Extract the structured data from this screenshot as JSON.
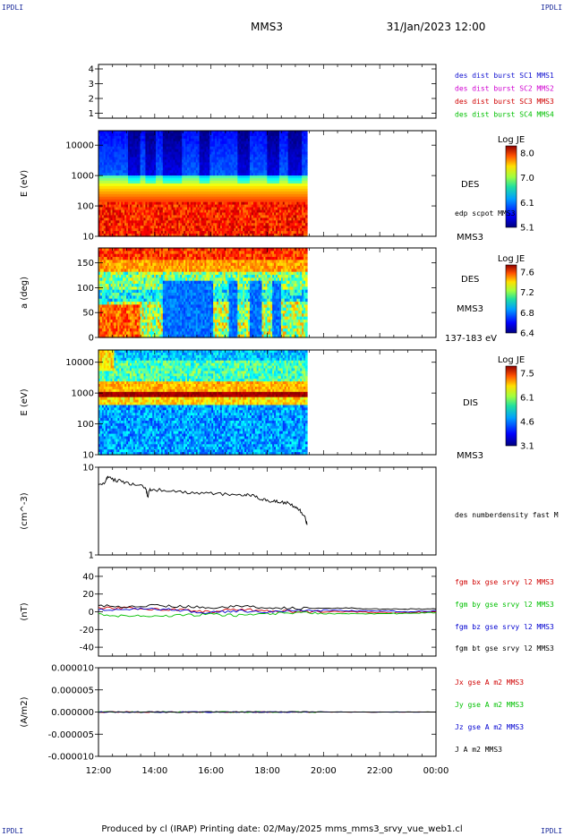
{
  "corner_label": "IPDLI",
  "header": {
    "title": "MMS3",
    "date": "31/Jan/2023 12:00"
  },
  "footer": "Produced by cl (IRAP)   Printing date: 02/May/2025   mms_mms3_srvy_vue_web1.cl",
  "colors": {
    "red": "#d00000",
    "magenta": "#d000d0",
    "green": "#00c000",
    "blue": "#0000d0",
    "black": "#000000"
  },
  "chart_data": [
    {
      "type": "line",
      "panel": "spacecraft-availability",
      "yticks": [
        "4",
        "3",
        "2",
        "1"
      ],
      "legend": [
        {
          "text": "des dist burst SC1 MMS1",
          "color": "#1010d0"
        },
        {
          "text": "des dist burst SC2 MMS2",
          "color": "#d000d0"
        },
        {
          "text": "des dist burst SC3 MMS3",
          "color": "#d00000"
        },
        {
          "text": "des dist burst SC4 MMS4",
          "color": "#00c000"
        }
      ]
    },
    {
      "type": "heatmap",
      "panel": "des-energy-spectrogram",
      "ylabel": "E (eV)",
      "yscale": "log",
      "ylim": [
        10,
        30000
      ],
      "yticks": [
        "10000",
        "1000",
        "100",
        "10"
      ],
      "data_end": "19:25",
      "instrument": "DES",
      "spacecraft": "MMS3",
      "overlay": "edp scpot MMS3",
      "colorbar": {
        "label": "Log JE",
        "ticks": [
          "8.0",
          "7.0",
          "6.1",
          "5.1"
        ]
      }
    },
    {
      "type": "heatmap",
      "panel": "des-pitch-angle",
      "ylabel": "a (deg)",
      "ylim": [
        0,
        180
      ],
      "yticks": [
        "150",
        "100",
        "50",
        "0"
      ],
      "data_end": "19:25",
      "instrument": "DES",
      "spacecraft": "MMS3",
      "energy_range": "137-183 eV",
      "colorbar": {
        "label": "Log JE",
        "ticks": [
          "7.6",
          "7.2",
          "6.8",
          "6.4"
        ]
      }
    },
    {
      "type": "heatmap",
      "panel": "dis-energy-spectrogram",
      "ylabel": "E (eV)",
      "yscale": "log",
      "ylim": [
        10,
        25000
      ],
      "yticks": [
        "10000",
        "1000",
        "100",
        "10"
      ],
      "data_end": "19:25",
      "instrument": "DIS",
      "spacecraft": "MMS3",
      "colorbar": {
        "label": "Log JE",
        "ticks": [
          "7.5",
          "6.1",
          "4.6",
          "3.1"
        ]
      }
    },
    {
      "type": "line",
      "panel": "density",
      "ylabel": "(cm^-3)",
      "yscale": "log",
      "ylim": [
        1,
        10
      ],
      "yticks": [
        "10",
        "1"
      ],
      "legend": [
        {
          "text": "des numberdensity fast M",
          "color": "#000000"
        }
      ],
      "series": [
        {
          "x": [
            "12:00",
            "12:15",
            "12:20",
            "12:30",
            "12:45",
            "13:00",
            "13:20",
            "13:40",
            "13:45",
            "13:50",
            "14:00",
            "14:30",
            "15:00",
            "15:30",
            "16:00",
            "16:30",
            "17:00",
            "17:15",
            "17:30",
            "17:45",
            "18:00",
            "18:15",
            "18:30",
            "18:45",
            "19:00",
            "19:10",
            "19:20",
            "19:25"
          ],
          "values": [
            6.4,
            6.8,
            7.8,
            7.2,
            7.0,
            6.7,
            6.2,
            5.9,
            4.6,
            5.6,
            5.6,
            5.3,
            5.2,
            5.1,
            5.0,
            4.9,
            4.9,
            4.8,
            4.7,
            4.4,
            4.2,
            4.1,
            4.0,
            3.9,
            3.5,
            3.2,
            2.8,
            2.2
          ]
        }
      ]
    },
    {
      "type": "line",
      "panel": "magnetic-field",
      "ylabel": "(nT)",
      "ylim": [
        -50,
        50
      ],
      "yticks": [
        "40",
        "20",
        "0",
        "-20",
        "-40"
      ],
      "x": [
        "12:00",
        "13:00",
        "14:00",
        "15:00",
        "16:00",
        "17:00",
        "18:00",
        "19:00",
        "20:00",
        "21:00",
        "22:00",
        "23:00",
        "00:00"
      ],
      "series": [
        {
          "name": "fgm bx gse srvy l2 MMS3",
          "color": "#d00000",
          "values": [
            5,
            4,
            3,
            2,
            0,
            3,
            1,
            0,
            0,
            0,
            -1,
            -1,
            0
          ]
        },
        {
          "name": "fgm by gse srvy l2 MMS3",
          "color": "#00c000",
          "values": [
            -3,
            -5,
            -5,
            -4,
            -3,
            -4,
            -2,
            -1,
            -2,
            -2,
            -2,
            -2,
            -1
          ]
        },
        {
          "name": "fgm bz gse srvy l2 MMS3",
          "color": "#0000d0",
          "values": [
            3,
            2,
            4,
            1,
            -1,
            1,
            0,
            1,
            2,
            1,
            1,
            0,
            1
          ]
        },
        {
          "name": "fgm bt gse srvy l2 MMS3",
          "color": "#000000",
          "values": [
            7,
            6,
            7,
            6,
            5,
            6,
            5,
            4,
            4,
            4,
            3,
            3,
            3
          ]
        }
      ]
    },
    {
      "type": "line",
      "panel": "current-density",
      "ylabel": "(A/m2)",
      "ylim": [
        -1e-05,
        1e-05
      ],
      "yticks": [
        "0.000010",
        "0.000005",
        "0.000000",
        "-0.000005",
        "-0.000010"
      ],
      "x": [
        "12:00",
        "13:00",
        "14:00",
        "15:00",
        "16:00",
        "17:00",
        "18:00",
        "19:00",
        "20:00",
        "21:00",
        "22:00",
        "23:00",
        "00:00"
      ],
      "xticks": [
        "12:00",
        "14:00",
        "16:00",
        "18:00",
        "20:00",
        "22:00",
        "00:00"
      ],
      "series": [
        {
          "name": "Jx gse A m2 MMS3",
          "color": "#d00000",
          "values": [
            0,
            0,
            0,
            0,
            0,
            0,
            0,
            0,
            0,
            0,
            0,
            0,
            0
          ]
        },
        {
          "name": "Jy gse A m2 MMS3",
          "color": "#00c000",
          "values": [
            0,
            0,
            0,
            0,
            0,
            0,
            0,
            0,
            0,
            0,
            0,
            0,
            0
          ]
        },
        {
          "name": "Jz gse A m2 MMS3",
          "color": "#0000d0",
          "values": [
            0,
            0,
            0,
            0,
            0,
            0,
            0,
            0,
            0,
            0,
            0,
            0,
            0
          ]
        },
        {
          "name": "J A m2 MMS3",
          "color": "#000000",
          "values": [
            0,
            0,
            0,
            0,
            0,
            0,
            0,
            0,
            0,
            0,
            0,
            0,
            0
          ]
        }
      ]
    }
  ]
}
